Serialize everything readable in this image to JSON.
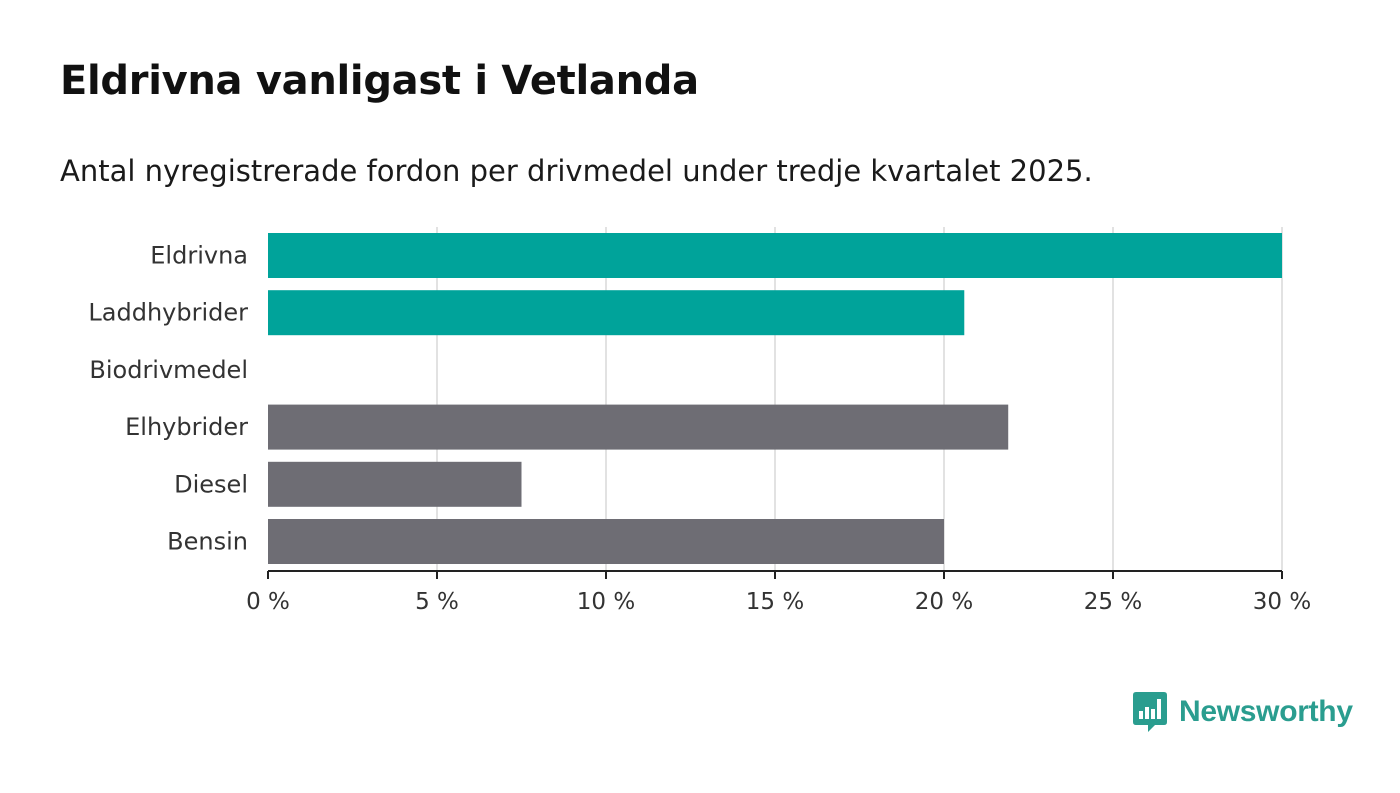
{
  "header": {
    "title": "Eldrivna vanligast i Vetlanda",
    "subtitle": "Antal nyregistrerade fordon per drivmedel under tredje kvartalet 2025."
  },
  "brand": {
    "name": "Newsworthy",
    "color": "#2a9d8f"
  },
  "colors": {
    "highlight": "#00a39a",
    "neutral": "#6e6d74",
    "grid": "#d9d9d9",
    "axis": "#222222"
  },
  "chart_data": {
    "type": "bar",
    "orientation": "horizontal",
    "categories": [
      "Eldrivna",
      "Laddhybrider",
      "Biodrivmedel",
      "Elhybrider",
      "Diesel",
      "Bensin"
    ],
    "values": [
      30.0,
      20.6,
      0,
      21.9,
      7.5,
      20.0
    ],
    "highlighted": [
      true,
      true,
      false,
      false,
      false,
      false
    ],
    "xlim": [
      0,
      30
    ],
    "ticks": [
      0,
      5,
      10,
      15,
      20,
      25,
      30
    ],
    "tick_labels": [
      "0 %",
      "5 %",
      "10 %",
      "15 %",
      "20 %",
      "25 %",
      "30 %"
    ],
    "grid": true,
    "unit": "%"
  }
}
